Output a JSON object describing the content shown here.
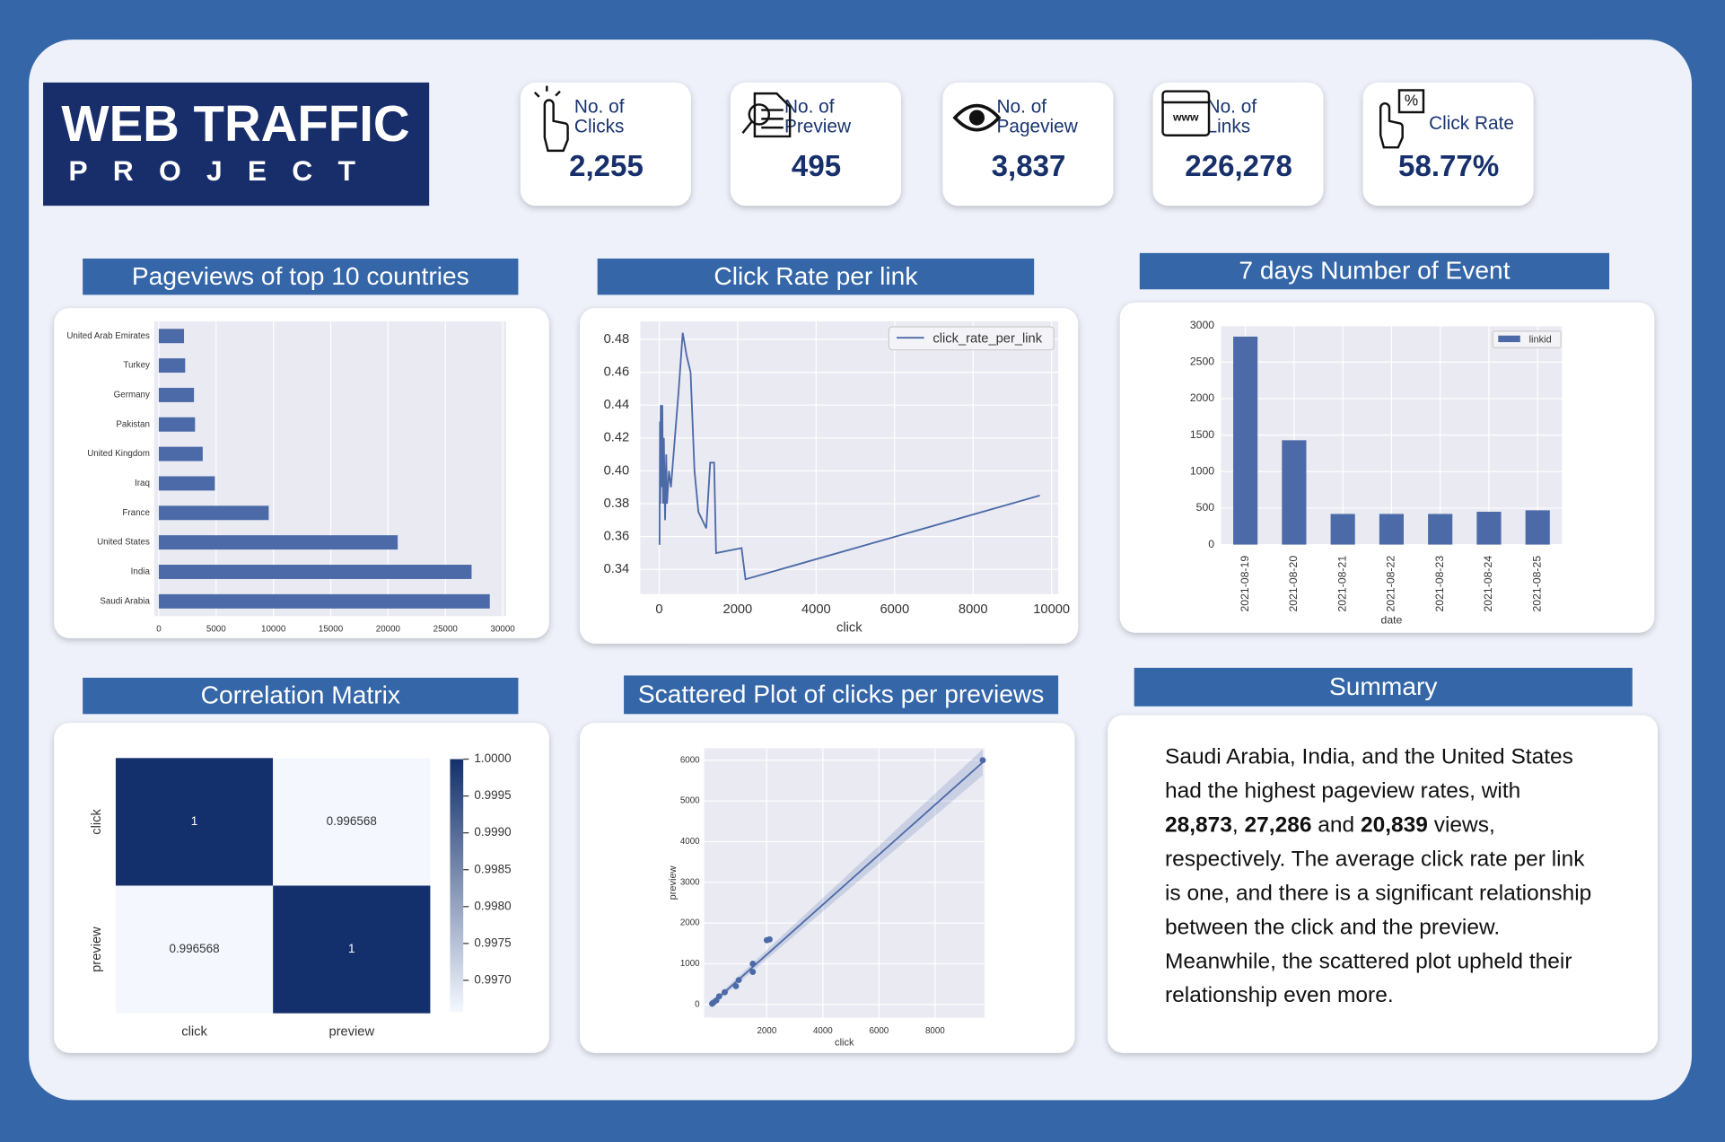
{
  "header": {
    "title": "WEB TRAFFIC",
    "subtitle": "PROJECT"
  },
  "kpis": [
    {
      "label": [
        "No. of",
        "Clicks"
      ],
      "value": "2,255"
    },
    {
      "label": [
        "No. of",
        "Preview"
      ],
      "value": "495"
    },
    {
      "label": [
        "No. of",
        "Pageview"
      ],
      "value": "3,837"
    },
    {
      "label": [
        "No. of",
        "Links"
      ],
      "value": "226,278"
    },
    {
      "label": [
        "Click Rate"
      ],
      "value": "58.77%"
    }
  ],
  "summary": {
    "title": "Summary",
    "lines": [
      [
        {
          "text": "Saudi Arabia, India, and the United States"
        }
      ],
      [
        {
          "text": "had the highest pageview rates, with"
        }
      ],
      [
        {
          "text": "28,873",
          "bold": true
        },
        {
          "text": ", "
        },
        {
          "text": "27,286",
          "bold": true
        },
        {
          "text": " and "
        },
        {
          "text": "20,839",
          "bold": true
        },
        {
          "text": " views,"
        }
      ],
      [
        {
          "text": "respectively. The average click rate per link"
        }
      ],
      [
        {
          "text": "is one, and there is a significant relationship"
        }
      ],
      [
        {
          "text": "between the click and the preview."
        }
      ],
      [
        {
          "text": "Meanwhile, the scattered plot upheld their"
        }
      ],
      [
        {
          "text": "relationship even more."
        }
      ]
    ]
  },
  "chart_data": [
    {
      "type": "barh",
      "title": "Pageviews of top 10 countries",
      "color": "#4c6aa8",
      "grid": true,
      "categories": [
        "United Arab Emirates",
        "Turkey",
        "Germany",
        "Pakistan",
        "United Kingdom",
        "Iraq",
        "France",
        "United States",
        "India",
        "Saudi Arabia"
      ],
      "values": [
        2200,
        2300,
        3070,
        3160,
        3830,
        4890,
        9590,
        20839,
        27286,
        28873
      ],
      "xlim": [
        -400,
        30300
      ],
      "xticks": [
        0,
        5000,
        10000,
        15000,
        20000,
        25000,
        30000
      ]
    },
    {
      "type": "line",
      "title": "Click Rate per link",
      "xlabel": "click",
      "grid": true,
      "legend": "upper right",
      "x": [
        10,
        20,
        30,
        40,
        60,
        80,
        100,
        120,
        150,
        180,
        200,
        250,
        300,
        400,
        500,
        600,
        700,
        800,
        900,
        1000,
        1100,
        1200,
        1300,
        1400,
        1450,
        2100,
        2200,
        9700
      ],
      "series": [
        {
          "name": "click_rate_per_link",
          "color": "#4c6aa8",
          "values": [
            0.355,
            0.43,
            0.38,
            0.44,
            0.39,
            0.44,
            0.38,
            0.42,
            0.37,
            0.41,
            0.38,
            0.4,
            0.39,
            0.42,
            0.45,
            0.484,
            0.47,
            0.46,
            0.4,
            0.375,
            0.37,
            0.365,
            0.405,
            0.405,
            0.35,
            0.353,
            0.334,
            0.385
          ]
        }
      ],
      "xlim": [
        -480,
        10170
      ],
      "xticks": [
        0,
        2000,
        4000,
        6000,
        8000,
        10000
      ],
      "ylim": [
        0.325,
        0.491
      ],
      "yticks": [
        0.34,
        0.36,
        0.38,
        {
          "value": 0.4,
          "label": "0.40"
        },
        0.42,
        0.44,
        0.46,
        0.48
      ]
    },
    {
      "type": "bar",
      "title": "7 days Number of Event",
      "xlabel": "date",
      "grid": true,
      "legend": "upper right",
      "categories": [
        "2021-08-19",
        "2021-08-20",
        "2021-08-21",
        "2021-08-22",
        "2021-08-23",
        "2021-08-24",
        "2021-08-25"
      ],
      "series": [
        {
          "name": "linkid",
          "color": "#4c6aa8",
          "values": [
            2850,
            1430,
            420,
            420,
            420,
            450,
            470
          ]
        }
      ],
      "ylim": [
        0,
        3000
      ],
      "yticks": [
        0,
        500,
        1000,
        1500,
        2000,
        2500,
        3000
      ]
    },
    {
      "type": "heatmap",
      "title": "Correlation Matrix",
      "categories": [
        "click",
        "preview"
      ],
      "values": [
        [
          1,
          0.996568
        ],
        [
          0.996568,
          1
        ]
      ],
      "colormap": [
        "#f4f8fe",
        "#14306c"
      ],
      "clim": [
        0.996568,
        1
      ],
      "cticks": [
        {
          "value": 1,
          "label": "1.0000"
        },
        0.9995,
        {
          "value": 0.999,
          "label": "0.9990"
        },
        0.9985,
        {
          "value": 0.998,
          "label": "0.9980"
        },
        0.9975,
        {
          "value": 0.997,
          "label": "0.9970"
        }
      ]
    },
    {
      "type": "scatter",
      "title": "Scattered Plot of clicks per previews",
      "xlabel": "click",
      "ylabel": "preview",
      "color": "#4c6aa8",
      "grid": true,
      "x": [
        50,
        100,
        200,
        300,
        500,
        900,
        1000,
        1500,
        1500,
        2000,
        2100,
        9700
      ],
      "y": [
        20,
        50,
        100,
        200,
        300,
        450,
        600,
        800,
        1000,
        1580,
        1600,
        6000
      ],
      "regression": {
        "x": [
          0,
          9700
        ],
        "y": [
          0,
          5950
        ],
        "ci": [
          60,
          320
        ]
      },
      "xlim": [
        -235,
        9765
      ],
      "xticks": [
        2000,
        4000,
        6000,
        8000
      ],
      "ylim": [
        -324,
        6297
      ],
      "yticks": [
        0,
        1000,
        2000,
        3000,
        4000,
        5000,
        6000
      ]
    }
  ]
}
